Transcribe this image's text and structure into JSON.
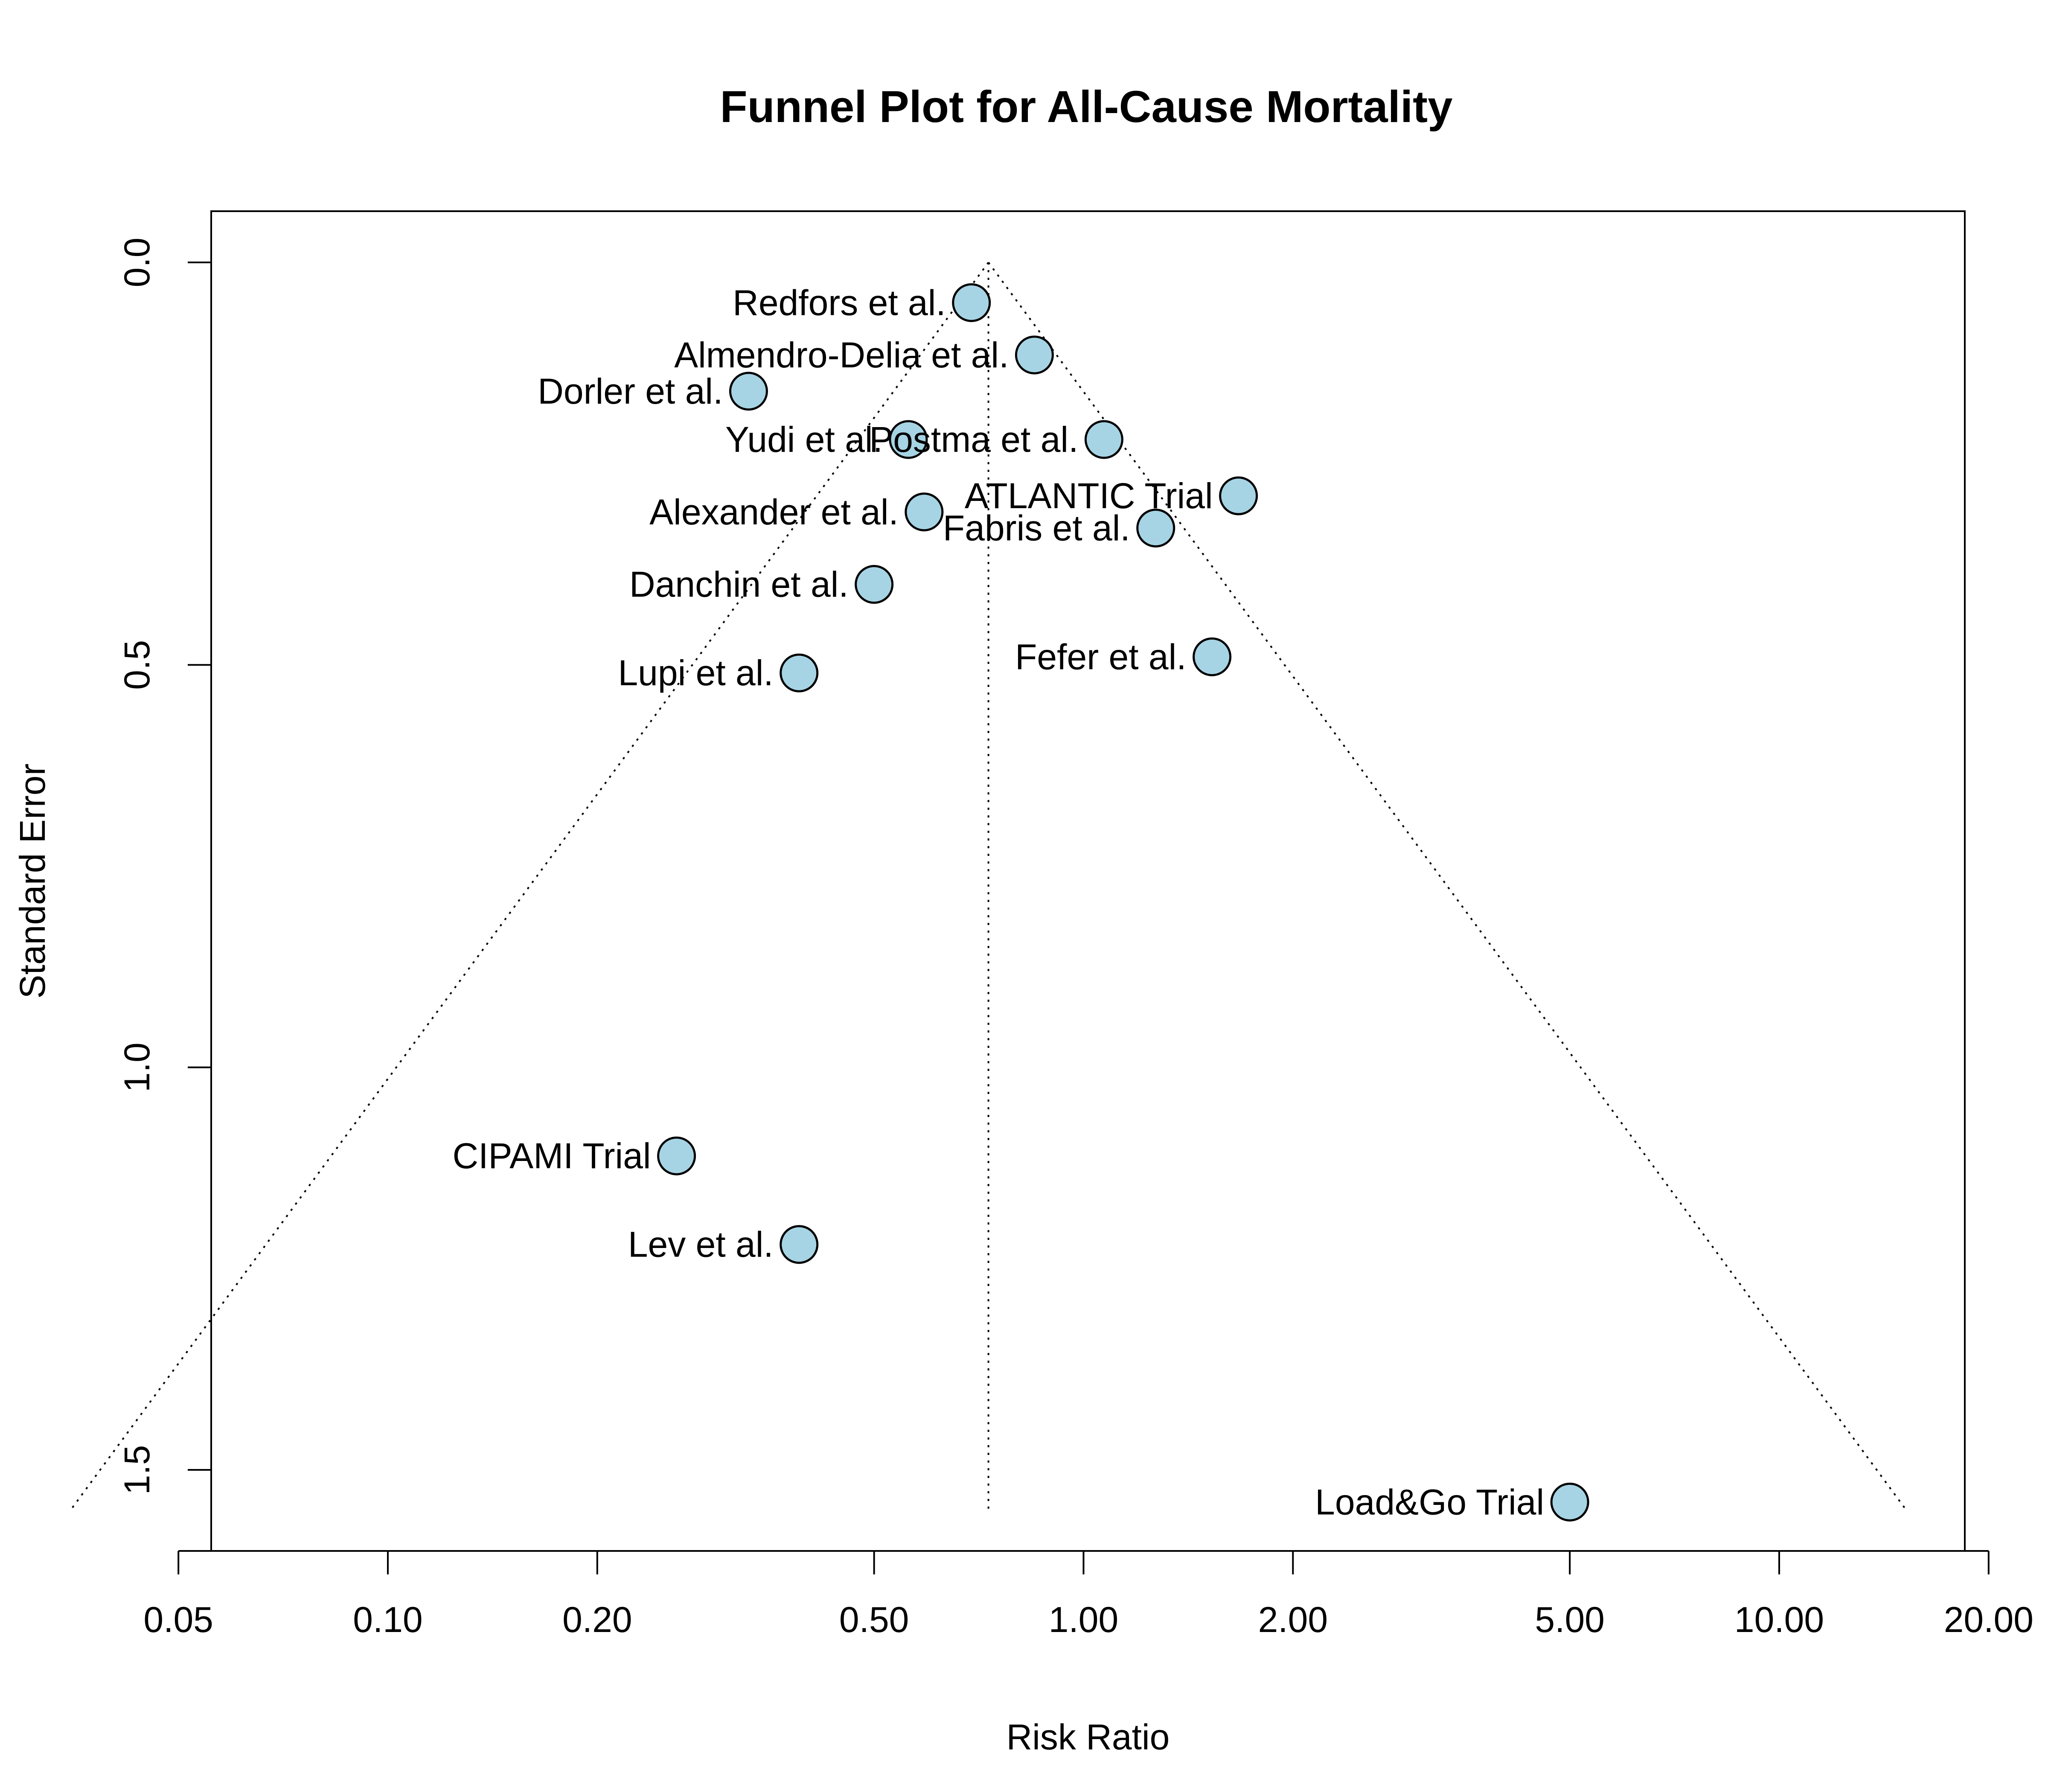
{
  "chart_data": {
    "type": "scatter",
    "title": "Funnel Plot for All-Cause Mortality",
    "xlabel": "Risk Ratio",
    "ylabel": "Standard Error",
    "x_scale": "log",
    "y_reversed": true,
    "xlim": [
      0.03,
      20.0
    ],
    "ylim": [
      0.0,
      1.55
    ],
    "x_ticks": [
      "0.05",
      "0.10",
      "0.20",
      "0.50",
      "1.00",
      "2.00",
      "5.00",
      "10.00",
      "20.00"
    ],
    "y_ticks": [
      "0.0",
      "0.5",
      "1.0",
      "1.5"
    ],
    "grid": false,
    "pooled_estimate": 0.73,
    "marker_fill": "#a6d4e4",
    "marker_edge": "#000000",
    "points": [
      {
        "label": "Redfors et al.",
        "x": 0.69,
        "y": 0.05
      },
      {
        "label": "Almendro-Delia et al.",
        "x": 0.85,
        "y": 0.115
      },
      {
        "label": "Dorler et al.",
        "x": 0.33,
        "y": 0.16
      },
      {
        "label": "Yudi et al.",
        "x": 0.56,
        "y": 0.22
      },
      {
        "label": "Postma et al.",
        "x": 1.07,
        "y": 0.22
      },
      {
        "label": "ATLANTIC Trial",
        "x": 1.67,
        "y": 0.29
      },
      {
        "label": "Alexander et al.",
        "x": 0.59,
        "y": 0.31
      },
      {
        "label": "Fabris et al.",
        "x": 1.27,
        "y": 0.33
      },
      {
        "label": "Danchin et al.",
        "x": 0.5,
        "y": 0.4
      },
      {
        "label": "Fefer et al.",
        "x": 1.53,
        "y": 0.49
      },
      {
        "label": "Lupi et al.",
        "x": 0.39,
        "y": 0.51
      },
      {
        "label": "CIPAMI Trial",
        "x": 0.26,
        "y": 1.11
      },
      {
        "label": "Lev et al.",
        "x": 0.39,
        "y": 1.22
      },
      {
        "label": "Load&Go Trial",
        "x": 5.0,
        "y": 1.54
      }
    ]
  }
}
